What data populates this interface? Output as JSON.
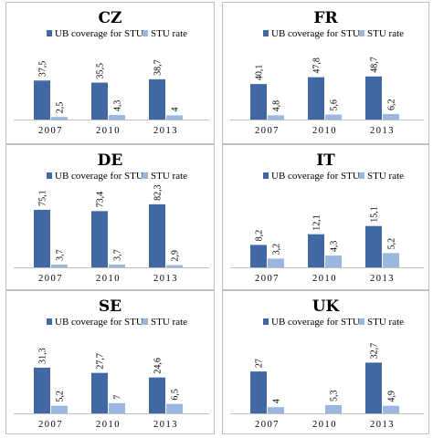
{
  "chart_data": [
    {
      "type": "bar",
      "title": "CZ",
      "categories": [
        "2007",
        "2010",
        "2013"
      ],
      "series": [
        {
          "name": "UB coverage for STU",
          "values": [
            37.5,
            35.5,
            38.7
          ],
          "labels": [
            "37,5",
            "35,5",
            "38,7"
          ],
          "color": "#4167a4"
        },
        {
          "name": "STU rate",
          "values": [
            2.5,
            4.3,
            4
          ],
          "labels": [
            "2,5",
            "4,3",
            "4"
          ],
          "color": "#9ab7e0"
        }
      ],
      "ylim": [
        0,
        100
      ],
      "grid": false,
      "legend": "top"
    },
    {
      "type": "bar",
      "title": "FR",
      "categories": [
        "2007",
        "2010",
        "2013"
      ],
      "series": [
        {
          "name": "UB coverage for STU",
          "values": [
            40.1,
            47.8,
            48.7
          ],
          "labels": [
            "40,1",
            "47,8",
            "48,7"
          ],
          "color": "#4167a4"
        },
        {
          "name": "STU rate",
          "values": [
            4.8,
            5.6,
            6.2
          ],
          "labels": [
            "4,8",
            "5,6",
            "6,2"
          ],
          "color": "#9ab7e0"
        }
      ],
      "ylim": [
        0,
        100
      ],
      "grid": false,
      "legend": "top"
    },
    {
      "type": "bar",
      "title": "DE",
      "categories": [
        "2007",
        "2010",
        "2013"
      ],
      "series": [
        {
          "name": "UB coverage for STU",
          "values": [
            75.1,
            73.4,
            82.3
          ],
          "labels": [
            "75,1",
            "73,4",
            "82,3"
          ],
          "color": "#4167a4"
        },
        {
          "name": "STU rate",
          "values": [
            3.7,
            3.7,
            2.9
          ],
          "labels": [
            "3,7",
            "3,7",
            "2,9"
          ],
          "color": "#9ab7e0"
        }
      ],
      "ylim": [
        0,
        100
      ],
      "grid": false,
      "legend": "top"
    },
    {
      "type": "bar",
      "title": "IT",
      "categories": [
        "2007",
        "2010",
        "2013"
      ],
      "series": [
        {
          "name": "UB coverage for STU",
          "values": [
            8.2,
            12.1,
            15.1
          ],
          "labels": [
            "8,2",
            "12,1",
            "15,1"
          ],
          "color": "#4167a4"
        },
        {
          "name": "STU rate",
          "values": [
            3.2,
            4.3,
            5.2
          ],
          "labels": [
            "3,2",
            "4,3",
            "5,2"
          ],
          "color": "#9ab7e0"
        }
      ],
      "ylim": [
        0,
        25
      ],
      "grid": false,
      "legend": "top"
    },
    {
      "type": "bar",
      "title": "SE",
      "categories": [
        "2007",
        "2010",
        "2013"
      ],
      "series": [
        {
          "name": "UB coverage for STU",
          "values": [
            31.3,
            27.7,
            24.6
          ],
          "labels": [
            "31,3",
            "27,7",
            "24,6"
          ],
          "color": "#4167a4"
        },
        {
          "name": "STU rate",
          "values": [
            5.2,
            7,
            6.5
          ],
          "labels": [
            "5,2",
            "7",
            "6,5"
          ],
          "color": "#9ab7e0"
        }
      ],
      "ylim": [
        0,
        40
      ],
      "grid": false,
      "legend": "top"
    },
    {
      "type": "bar",
      "title": "UK",
      "categories": [
        "2007",
        "2010",
        "2013"
      ],
      "series": [
        {
          "name": "UB coverage for STU",
          "values": [
            27,
            null,
            32.7
          ],
          "labels": [
            "27",
            "",
            "32,7"
          ],
          "color": "#4167a4"
        },
        {
          "name": "STU rate",
          "values": [
            4,
            5.3,
            4.9
          ],
          "labels": [
            "4",
            "5,3",
            "4,9"
          ],
          "color": "#9ab7e0"
        }
      ],
      "ylim": [
        0,
        40
      ],
      "grid": false,
      "legend": "top"
    }
  ]
}
